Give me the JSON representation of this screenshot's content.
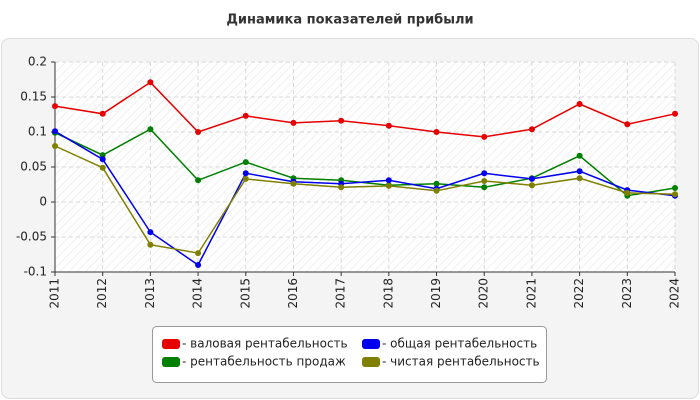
{
  "chart_data": {
    "type": "line",
    "title": "Динамика показателей прибыли",
    "categories": [
      "2011",
      "2012",
      "2013",
      "2014",
      "2015",
      "2016",
      "2017",
      "2018",
      "2019",
      "2020",
      "2021",
      "2022",
      "2023",
      "2024"
    ],
    "series": [
      {
        "name": "- валовая рентабельность",
        "color": "#e60000",
        "values": [
          0.137,
          0.126,
          0.171,
          0.1,
          0.123,
          0.113,
          0.116,
          0.109,
          0.1,
          0.093,
          0.104,
          0.14,
          0.111,
          0.126
        ]
      },
      {
        "name": "- рентабельность продаж",
        "color": "#008000",
        "values": [
          0.099,
          0.067,
          0.104,
          0.031,
          0.057,
          0.034,
          0.031,
          0.024,
          0.026,
          0.021,
          0.034,
          0.066,
          0.009,
          0.02
        ]
      },
      {
        "name": "- общая рентабельность",
        "color": "#0000ee",
        "values": [
          0.101,
          0.061,
          -0.043,
          -0.09,
          0.041,
          0.029,
          0.026,
          0.031,
          0.019,
          0.041,
          0.033,
          0.044,
          0.017,
          0.009
        ]
      },
      {
        "name": "- чистая рентабельность",
        "color": "#808000",
        "values": [
          0.08,
          0.049,
          -0.061,
          -0.073,
          0.033,
          0.026,
          0.021,
          0.023,
          0.016,
          0.03,
          0.024,
          0.034,
          0.013,
          0.011
        ]
      }
    ],
    "ylim": [
      -0.1,
      0.2
    ],
    "yticks": [
      0.2,
      0.15,
      0.1,
      0.05,
      0,
      -0.05,
      -0.1
    ],
    "grid": true
  }
}
